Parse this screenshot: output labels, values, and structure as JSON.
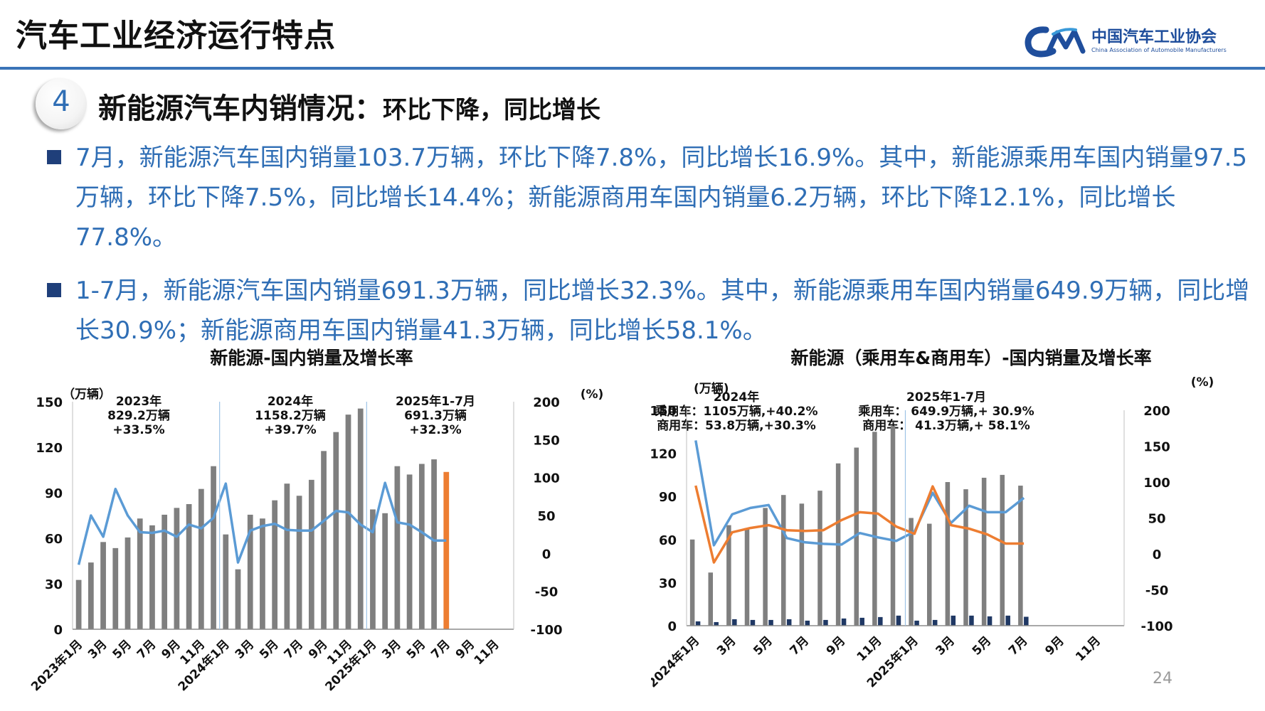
{
  "header": {
    "title": "汽车工业经济运行特点",
    "logo_cn": "中国汽车工业协会",
    "logo_en": "China Association of Automobile Manufacturers"
  },
  "section": {
    "number": "4",
    "title_main": "新能源汽车内销情况：",
    "title_sub": "环比下降，同比增长"
  },
  "bullets": [
    "7月，新能源汽车国内销量103.7万辆，环比下降7.8%，同比增长16.9%。其中，新能源乘用车国内销量97.5万辆，环比下降7.5%，同比增长14.4%；新能源商用车国内销量6.2万辆，环比下降12.1%，同比增长77.8%。",
    "1-7月，新能源汽车国内销量691.3万辆，同比增长32.3%。其中，新能源乘用车国内销量649.9万辆，同比增长30.9%；新能源商用车国内销量41.3万辆，同比增长58.1%。"
  ],
  "page_number": "24",
  "colors": {
    "accent": "#2f6eb5",
    "bar": "#7f7f7f",
    "highlight_bar": "#ed7d31",
    "line_blue": "#5b9bd5",
    "line_orange": "#ed7d31",
    "dark_blue": "#1f3864",
    "rule": "#3a74b8"
  },
  "icons": {
    "bullet": "square-bullet-icon",
    "logo": "caam-logo-icon"
  },
  "chart_data": [
    {
      "type": "bar",
      "title": "新能源-国内销量及增长率",
      "ylabel_left": "（万辆）",
      "ylabel_right": "(%)",
      "ylim_left": [
        0,
        150
      ],
      "ylim_right": [
        -100,
        200
      ],
      "yticks_left": [
        "0",
        "30",
        "60",
        "90",
        "120",
        "150"
      ],
      "yticks_right": [
        "-100",
        "-50",
        "0",
        "50",
        "100",
        "150",
        "200"
      ],
      "xtick_labels": [
        "2023年1月",
        "3月",
        "5月",
        "7月",
        "9月",
        "11月",
        "2024年1月",
        "3月",
        "5月",
        "7月",
        "9月",
        "11月",
        "2025年1月",
        "3月",
        "5月",
        "7月",
        "9月",
        "11月"
      ],
      "grid": false,
      "annotations": [
        {
          "year": "2023年",
          "volume": "829.2万辆",
          "growth": "+33.5%"
        },
        {
          "year": "2024年",
          "volume": "1158.2万辆",
          "growth": "+39.7%"
        },
        {
          "year": "2025年1-7月",
          "volume": "691.3万辆",
          "growth": "+32.3%"
        }
      ],
      "series": [
        {
          "kind": "bar",
          "axis": "left",
          "values": [
            32.5,
            44,
            57.5,
            53.5,
            60.5,
            73,
            68.5,
            75.5,
            80,
            82.5,
            92.5,
            107.5,
            62.5,
            39.5,
            75.5,
            73,
            85,
            96,
            88,
            98.5,
            117.5,
            130,
            141.5,
            145.5,
            79,
            76.5,
            107.5,
            102,
            109,
            112,
            103.7,
            null,
            null,
            null,
            null,
            null
          ],
          "highlight_index": 30
        },
        {
          "kind": "line",
          "axis": "right",
          "values": [
            -15,
            50,
            22,
            85,
            50,
            28,
            27,
            30,
            22,
            38,
            33,
            47,
            92,
            -12,
            30,
            36,
            39,
            31,
            30,
            30,
            43,
            56,
            54,
            38,
            28,
            93,
            41,
            38,
            28,
            16.9,
            16.9,
            null,
            null,
            null,
            null,
            null
          ]
        }
      ]
    },
    {
      "type": "bar",
      "title": "新能源（乘用车&商用车）-国内销量及增长率",
      "ylabel_left": "(万辆)",
      "ylabel_right": "(%)",
      "ylim_left": [
        0,
        150
      ],
      "ylim_right": [
        -100,
        200
      ],
      "yticks_left": [
        "0",
        "30",
        "60",
        "90",
        "120",
        "150"
      ],
      "yticks_right": [
        "-100",
        "-50",
        "0",
        "50",
        "100",
        "150",
        "200"
      ],
      "xtick_labels": [
        "2024年1月",
        "3月",
        "5月",
        "7月",
        "9月",
        "11月",
        "2025年1月",
        "3月",
        "5月",
        "7月",
        "9月",
        "11月"
      ],
      "grid": false,
      "annotations": [
        {
          "year": "2024年",
          "passenger": "乘用车：1105万辆,+40.2%",
          "commercial": "商用车：53.8万辆,+30.3%"
        },
        {
          "year": "2025年1-7月",
          "passenger": "乘用车： 649.9万辆,+ 30.9%",
          "commercial": "商用车： 41.3万辆,+ 58.1%"
        }
      ],
      "series": [
        {
          "kind": "bar",
          "axis": "left",
          "values": [
            60,
            37,
            70,
            68,
            82,
            91,
            85,
            94,
            113,
            124,
            135,
            139,
            75,
            71,
            100,
            95,
            103,
            105,
            97.5,
            null,
            null,
            null,
            null,
            null
          ]
        },
        {
          "kind": "bar",
          "axis": "left",
          "values": [
            3,
            2.5,
            4.5,
            4,
            4,
            4.5,
            3.5,
            4,
            5,
            5.5,
            6,
            7,
            3.5,
            4,
            7,
            7,
            6.5,
            7,
            6.2,
            null,
            null,
            null,
            null,
            null
          ]
        },
        {
          "kind": "line",
          "axis": "right",
          "values": [
            158,
            12,
            55,
            64,
            68,
            22,
            16,
            14,
            13,
            29,
            23,
            18,
            31,
            85,
            43,
            67,
            58,
            58,
            78,
            null,
            null,
            null,
            null,
            null
          ]
        },
        {
          "kind": "line",
          "axis": "right",
          "values": [
            95,
            -12,
            30,
            36,
            40,
            33,
            32,
            33,
            47,
            58,
            56,
            38,
            28,
            94,
            40,
            35,
            27,
            14.4,
            14.4,
            null,
            null,
            null,
            null,
            null
          ]
        }
      ]
    }
  ]
}
